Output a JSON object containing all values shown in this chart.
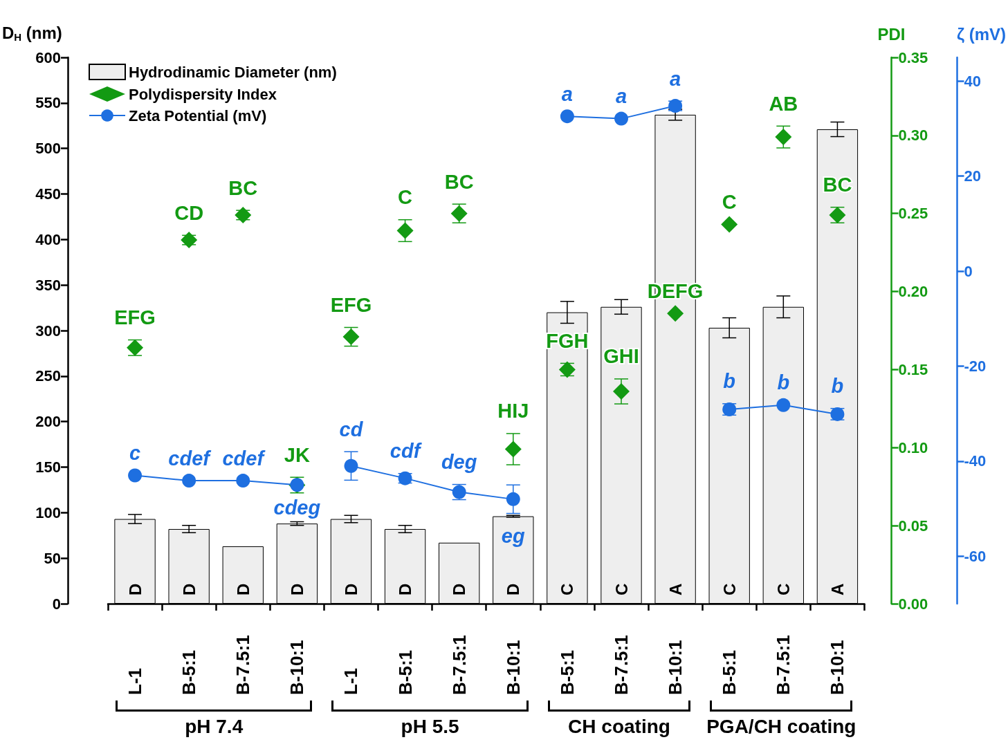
{
  "chart_data": {
    "type": "bar",
    "ylabel": "D$_{H}$ (nm)",
    "y2label": "PDI",
    "y3label": "ζ (mV)",
    "categories": [
      "L-1",
      "B-5:1",
      "B-7.5:1",
      "B-10:1",
      "L-1",
      "B-5:1",
      "B-7.5:1",
      "B-10:1",
      "B-5:1",
      "B-7.5:1",
      "B-10:1",
      "B-5:1",
      "B-7.5:1",
      "B-10:1"
    ],
    "series": [
      {
        "name": "Hydrodinamic Diameter (nm)",
        "color": "#eeeeee",
        "values": [
          93,
          82,
          63,
          88,
          93,
          82,
          67,
          96,
          320,
          326,
          537,
          303,
          326,
          521
        ],
        "errors": [
          5,
          4,
          null,
          2,
          4,
          4,
          null,
          1,
          12,
          8,
          6,
          11,
          12,
          8
        ],
        "value_labels": [
          "D",
          "D",
          "D",
          "D",
          "D",
          "D",
          "D",
          "D",
          "C",
          "C",
          "A",
          "C",
          "C",
          "A"
        ]
      },
      {
        "type": "scatter",
        "name": "Polydispersity Index",
        "axis": "y2",
        "marker": "diamond",
        "color": "#139a13",
        "values": [
          0.164,
          0.233,
          0.249,
          0.076,
          0.171,
          0.239,
          0.25,
          0.099,
          0.15,
          0.136,
          0.186,
          0.243,
          0.299,
          0.249
        ],
        "errors": [
          0.005,
          0.003,
          0.003,
          0.005,
          0.006,
          0.007,
          0.006,
          0.01,
          0.004,
          0.008,
          null,
          null,
          0.007,
          0.005
        ],
        "value_labels": [
          "EFG",
          "CD",
          "BC",
          "JK",
          "EFG",
          "C",
          "BC",
          "HIJ",
          "FGH",
          "GHI",
          "DEFG",
          "C",
          "AB",
          "BC"
        ]
      },
      {
        "type": "line",
        "name": "Zeta Potential (mV)",
        "axis": "y3",
        "marker": "circle",
        "color": "#1e6fe0",
        "values": [
          -43,
          -44.1,
          -44.1,
          -45,
          null,
          null,
          null,
          null,
          null,
          null,
          null,
          null,
          null,
          null
        ],
        "errors": [
          null,
          null,
          null,
          null,
          null,
          null,
          null,
          null,
          null,
          null,
          null,
          null,
          null,
          null
        ],
        "value_labels": [
          "c",
          "cdef",
          "cdef",
          "cdeg",
          null,
          null,
          null,
          null,
          null,
          null,
          null,
          null,
          null,
          null
        ]
      },
      {
        "type": "line",
        "axis": "y3",
        "marker": "circle",
        "color": "#1e6fe0",
        "values": [
          null,
          null,
          null,
          null,
          -41,
          -43.6,
          -46.5,
          -48,
          null,
          null,
          null,
          null,
          null,
          null
        ],
        "errors": [
          null,
          null,
          null,
          null,
          3,
          1,
          1.6,
          3,
          null,
          null,
          null,
          null,
          null,
          null
        ],
        "value_labels": [
          null,
          null,
          null,
          null,
          "cd",
          "cdf",
          "deg",
          "eg",
          null,
          null,
          null,
          null,
          null,
          null
        ]
      },
      {
        "type": "line",
        "axis": "y3",
        "marker": "circle",
        "color": "#1e6fe0",
        "values": [
          null,
          null,
          null,
          null,
          null,
          null,
          null,
          null,
          32.6,
          32.1,
          34.8,
          null,
          null,
          null
        ],
        "errors": [
          null,
          null,
          null,
          null,
          null,
          null,
          null,
          null,
          null,
          null,
          1,
          null,
          null,
          null
        ],
        "value_labels": [
          null,
          null,
          null,
          null,
          null,
          null,
          null,
          null,
          "a",
          "a",
          "a",
          null,
          null,
          null
        ]
      },
      {
        "type": "line",
        "axis": "y3",
        "marker": "circle",
        "color": "#1e6fe0",
        "values": [
          null,
          null,
          null,
          null,
          null,
          null,
          null,
          null,
          null,
          null,
          null,
          -29.1,
          -28.2,
          -30.1
        ],
        "errors": [
          null,
          null,
          null,
          null,
          null,
          null,
          null,
          null,
          null,
          null,
          null,
          1.2,
          null,
          1.2
        ],
        "value_labels": [
          null,
          null,
          null,
          null,
          null,
          null,
          null,
          null,
          null,
          null,
          null,
          "b",
          "b",
          "b"
        ]
      }
    ],
    "ylim": [
      0,
      600
    ],
    "yticks": [
      0,
      50,
      100,
      150,
      200,
      250,
      300,
      350,
      400,
      450,
      500,
      550,
      600
    ],
    "y2lim": [
      0,
      0.35
    ],
    "y2ticks": [
      {
        "value": 0,
        "label": "0.00"
      },
      {
        "value": 0.05,
        "label": "0.05"
      },
      {
        "value": 0.1,
        "label": "0.10"
      },
      {
        "value": 0.15,
        "label": "0.15"
      },
      {
        "value": 0.2,
        "label": "0.20"
      },
      {
        "value": 0.25,
        "label": "0.25"
      },
      {
        "value": 0.3,
        "label": "0.30"
      },
      {
        "value": 0.35,
        "label": "0.35"
      }
    ],
    "y3lim": [
      -70,
      45
    ],
    "y3ticks": [
      -60,
      -40,
      -20,
      0,
      20,
      40
    ],
    "legend": "top left",
    "annotations": [
      "pH 7.4",
      "pH 5.5",
      "CH coating",
      "PGA/CH coating"
    ]
  }
}
